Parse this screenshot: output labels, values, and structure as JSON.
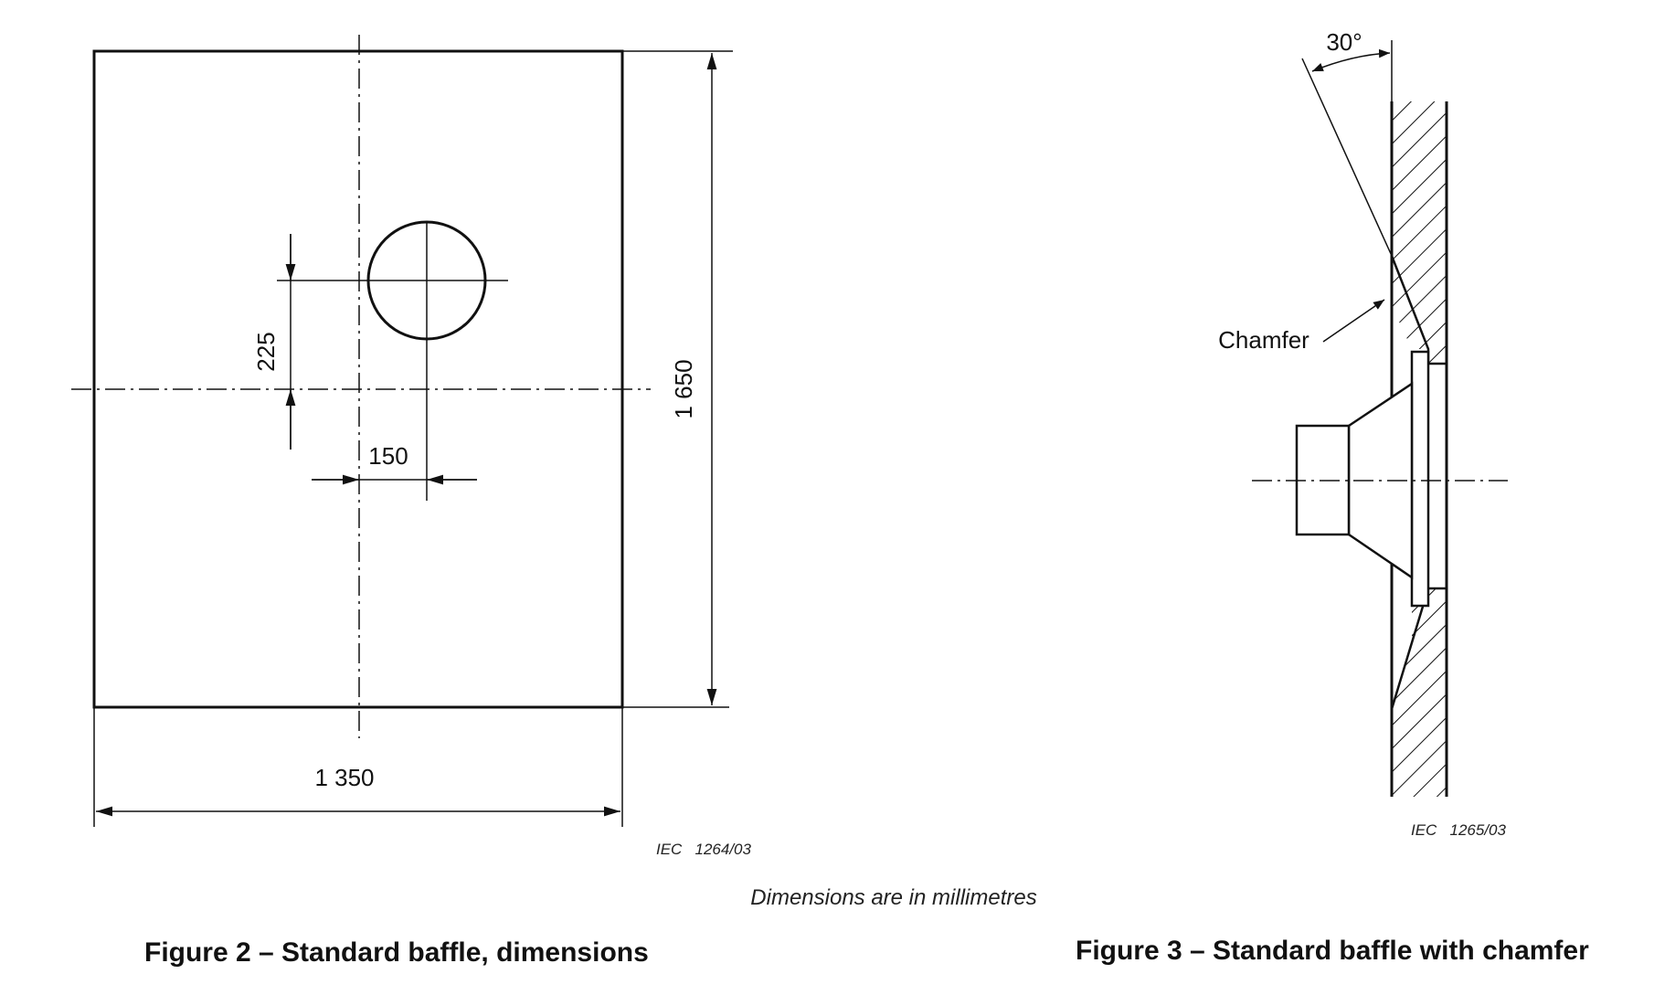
{
  "figure2": {
    "width_dim": "1 350",
    "height_dim": "1 650",
    "vertical_offset_dim": "225",
    "horizontal_offset_dim": "150",
    "iec_code": "IEC   1264/03",
    "caption": "Figure 2 – Standard baffle, dimensions"
  },
  "figure3": {
    "angle_label": "30°",
    "chamfer_label": "Chamfer",
    "iec_code": "IEC   1265/03",
    "caption": "Figure 3 – Standard baffle with chamfer"
  },
  "note": "Dimensions are in millimetres"
}
